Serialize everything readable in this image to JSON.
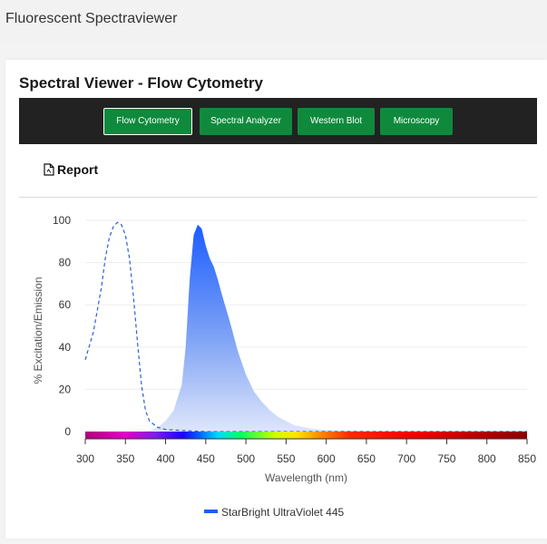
{
  "app": {
    "title": "Fluorescent Spectraviewer"
  },
  "card": {
    "title": "Spectral Viewer - Flow Cytometry"
  },
  "nav": {
    "tabs": [
      {
        "label": "Flow Cytometry",
        "active": true
      },
      {
        "label": "Spectral Analyzer",
        "active": false
      },
      {
        "label": "Western Blot",
        "active": false
      },
      {
        "label": "Microscopy",
        "active": false
      }
    ]
  },
  "toolbar": {
    "report_label": "Report",
    "report_icon": "document-icon"
  },
  "colors": {
    "nav_bg": "#222222",
    "button_green": "#0f8a3c",
    "emission": "#1a5cff",
    "excitation": "#2b5fd9"
  },
  "chart_data": {
    "type": "area",
    "xlabel": "Wavelength (nm)",
    "ylabel": "% Excitation/Emission",
    "xlim": [
      300,
      850
    ],
    "ylim": [
      0,
      100
    ],
    "xticks": [
      300,
      350,
      400,
      450,
      500,
      550,
      600,
      650,
      700,
      750,
      800,
      850
    ],
    "yticks": [
      0,
      20,
      40,
      60,
      80,
      100
    ],
    "grid": true,
    "legend": "bottom-center",
    "series": [
      {
        "name": "StarBright UltraViolet 445",
        "kind": "emission",
        "style": "filled",
        "x": [
          370,
          380,
          390,
          400,
          410,
          420,
          425,
          430,
          435,
          440,
          445,
          450,
          455,
          460,
          465,
          470,
          480,
          490,
          500,
          510,
          520,
          530,
          540,
          550,
          560,
          580,
          600,
          650,
          700,
          850
        ],
        "y": [
          0,
          0.5,
          2,
          5,
          10,
          22,
          40,
          72,
          93,
          98,
          96,
          88,
          82,
          78,
          72,
          65,
          52,
          38,
          27,
          19,
          14,
          10,
          7,
          5,
          3,
          1.5,
          0.7,
          0.2,
          0,
          0
        ]
      },
      {
        "name": "StarBright UltraViolet 445",
        "kind": "excitation",
        "style": "dashed",
        "x": [
          300,
          310,
          320,
          325,
          330,
          335,
          340,
          345,
          350,
          355,
          360,
          365,
          370,
          375,
          380,
          390,
          400,
          420,
          450,
          500,
          850
        ],
        "y": [
          34,
          47,
          68,
          82,
          92,
          97,
          99,
          98,
          93,
          82,
          64,
          42,
          22,
          10,
          5,
          2,
          1,
          0.5,
          0,
          0,
          0
        ]
      }
    ]
  }
}
